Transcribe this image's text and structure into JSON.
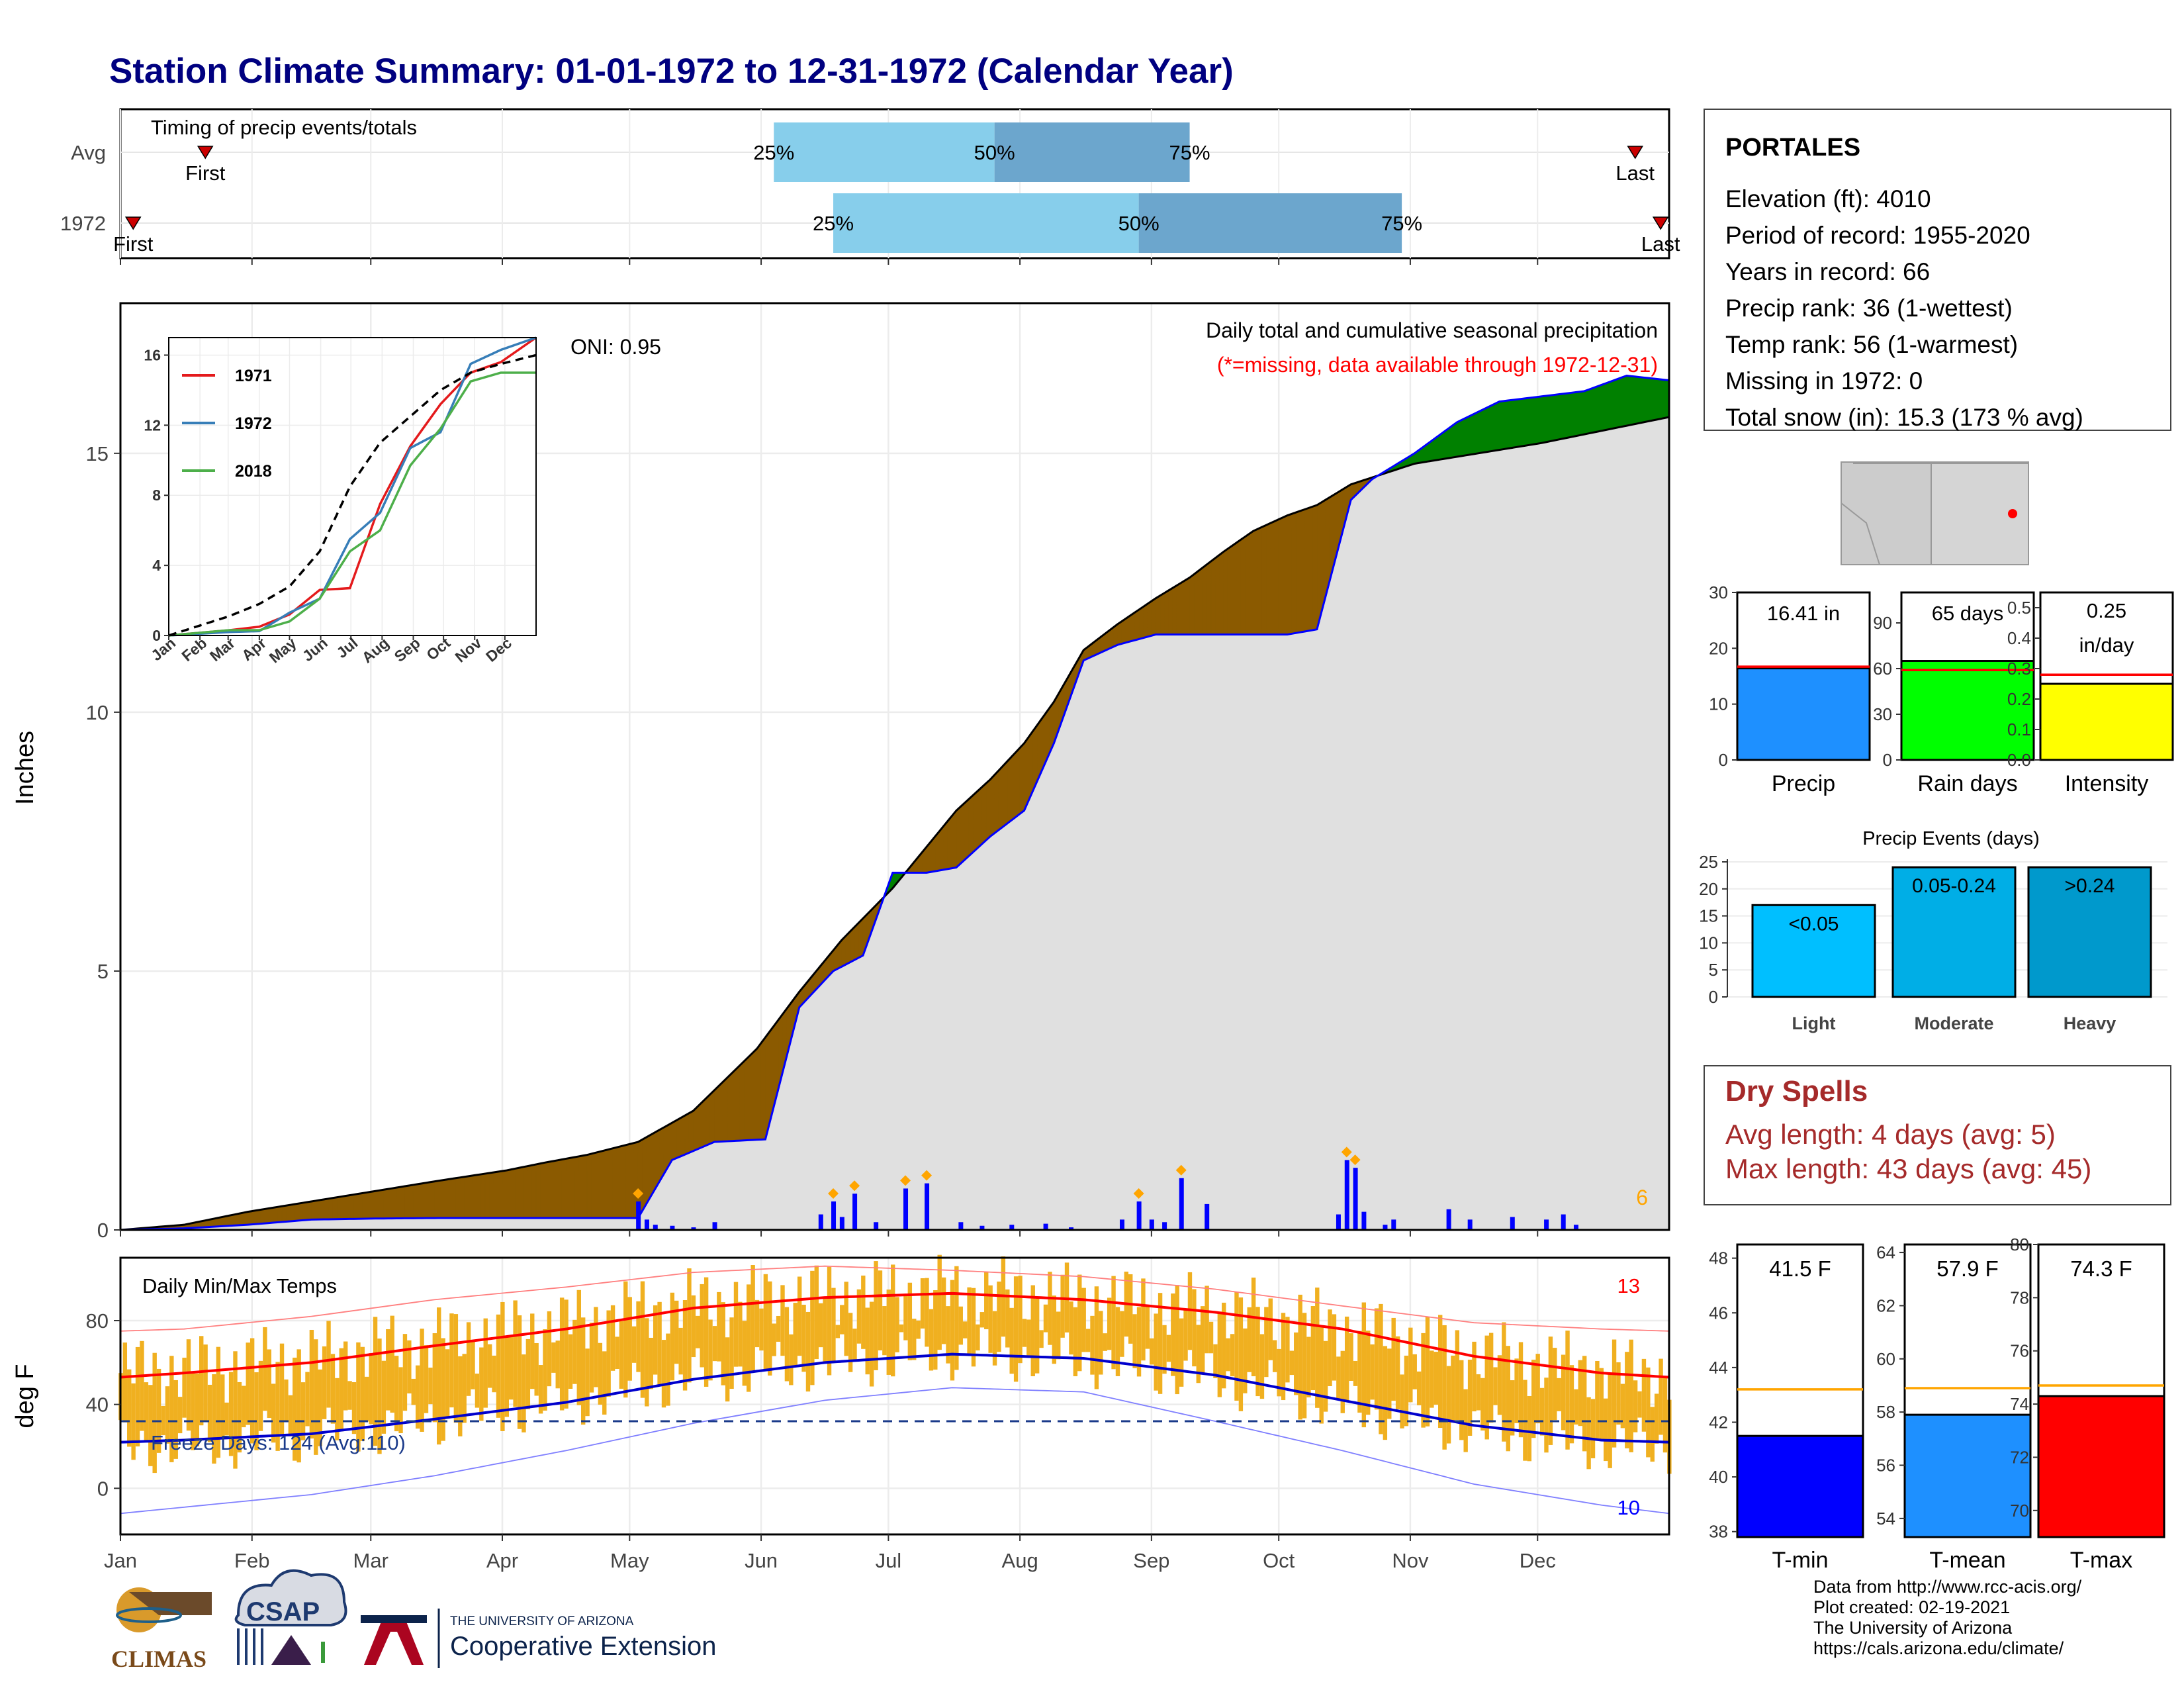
{
  "title": "Station Climate Summary: 01-01-1972 to 12-31-1972 (Calendar Year)",
  "months": [
    "Jan",
    "Feb",
    "Mar",
    "Apr",
    "May",
    "Jun",
    "Jul",
    "Aug",
    "Sep",
    "Oct",
    "Nov",
    "Dec"
  ],
  "timing": {
    "label": "Timing of precip events/totals",
    "rows": [
      {
        "name": "Avg",
        "first_doy": 20,
        "q25_doy": 154,
        "q50_doy": 206,
        "q75_doy": 252,
        "last_doy": 357
      },
      {
        "name": "1972",
        "first_doy": 3,
        "q25_doy": 168,
        "q50_doy": 240,
        "q75_doy": 302,
        "last_doy": 363
      }
    ],
    "labels": {
      "first": "First",
      "last": "Last",
      "q25": "25%",
      "q50": "50%",
      "q75": "75%"
    }
  },
  "precip": {
    "ylabel": "Inches",
    "yticks": [
      0,
      5,
      10,
      15
    ],
    "title1": "Daily total and cumulative seasonal precipitation",
    "title2": "(*=missing, data available through 1972-12-31)",
    "oni": "ONI: 0.95",
    "corner_count": "6"
  },
  "inset": {
    "yticks": [
      "0",
      "4",
      "8",
      "12",
      "16"
    ],
    "legend": [
      "1971",
      "1972",
      "2018"
    ],
    "colors": [
      "#e41a1c",
      "#377eb8",
      "#4daf4a"
    ]
  },
  "temps": {
    "ylabel": "deg F",
    "title": "Daily Min/Max Temps",
    "yticks": [
      "0",
      "40",
      "80"
    ],
    "freeze": "Freeze Days: 124 (Avg:110)",
    "count_hot": "13",
    "count_cold": "10"
  },
  "station": {
    "name": "PORTALES",
    "lines": [
      "Elevation (ft): 4010",
      "Period of record: 1955-2020",
      "Years in record: 66",
      "Precip rank: 36 (1-wettest)",
      "Temp rank: 56 (1-warmest)",
      "Missing in 1972: 0",
      "Total snow (in): 15.3 (173 % avg)"
    ]
  },
  "summary_bars": [
    {
      "label": "Precip",
      "value_text": "16.41 in",
      "value": 16.41,
      "avg": 16.7,
      "ymax": 30,
      "ticks": [
        "0",
        "10",
        "20",
        "30"
      ],
      "tick_vals": [
        0,
        10,
        20,
        30
      ],
      "color": "#1e90ff"
    },
    {
      "label": "Rain days",
      "value_text": "65 days",
      "value": 65,
      "avg": 59,
      "ymax": 110,
      "ticks": [
        "0",
        "30",
        "60",
        "90"
      ],
      "tick_vals": [
        0,
        30,
        60,
        90
      ],
      "color": "#00ff00"
    },
    {
      "label": "Intensity",
      "value_text": "0.25 in/day",
      "value": 0.25,
      "avg": 0.28,
      "ymax": 0.55,
      "ticks": [
        "0.0",
        "0.1",
        "0.2",
        "0.3",
        "0.4",
        "0.5"
      ],
      "tick_vals": [
        0,
        0.1,
        0.2,
        0.3,
        0.4,
        0.5
      ],
      "color": "#ffff00"
    }
  ],
  "precip_events": {
    "title": "Precip Events (days)",
    "yticks": [
      "0",
      "5",
      "10",
      "15",
      "20",
      "25"
    ],
    "bars": [
      {
        "label": "Light",
        "text": "<0.05",
        "value": 17,
        "color": "#00bfff"
      },
      {
        "label": "Moderate",
        "text": "0.05-0.24",
        "value": 24,
        "color": "#00aee6"
      },
      {
        "label": "Heavy",
        "text": ">0.24",
        "value": 24,
        "color": "#0099cc"
      }
    ]
  },
  "dry_spells": {
    "title": "Dry Spells",
    "avg_length": "Avg length: 4 days (avg: 5)",
    "max_length": "Max length: 43 days (avg: 45)"
  },
  "temp_bars": [
    {
      "label": "T-min",
      "value_text": "41.5 F",
      "value": 41.5,
      "avg": 43.2,
      "ymin": 37.8,
      "ymax": 48.5,
      "ticks": [
        "38",
        "40",
        "42",
        "44",
        "46",
        "48"
      ],
      "tick_vals": [
        38,
        40,
        42,
        44,
        46,
        48
      ],
      "color": "#0000ff"
    },
    {
      "label": "T-mean",
      "value_text": "57.9 F",
      "value": 57.9,
      "avg": 58.9,
      "ymin": 53.3,
      "ymax": 64.3,
      "ticks": [
        "54",
        "56",
        "58",
        "60",
        "62",
        "64"
      ],
      "tick_vals": [
        54,
        56,
        58,
        60,
        62,
        64
      ],
      "color": "#1e90ff"
    },
    {
      "label": "T-max",
      "value_text": "74.3 F",
      "value": 74.3,
      "avg": 74.7,
      "ymin": 69.0,
      "ymax": 80.0,
      "ticks": [
        "70",
        "72",
        "74",
        "76",
        "78",
        "80"
      ],
      "tick_vals": [
        70,
        72,
        74,
        76,
        78,
        80
      ],
      "color": "#ff0000"
    }
  ],
  "footer": [
    "Data from http://www.rcc-acis.org/",
    "Plot created: 02-19-2021",
    "The University of Arizona",
    "https://cals.arizona.edu/climate/"
  ],
  "logos": {
    "climas": "CLIMAS",
    "csap": "CSAP",
    "ua_small": "THE UNIVERSITY OF ARIZONA",
    "ua_big": "Cooperative Extension"
  },
  "chart_data": [
    {
      "type": "area",
      "title": "Daily total and cumulative seasonal precipitation",
      "ylabel": "Inches",
      "ylim": [
        0,
        17.9
      ],
      "series": [
        {
          "name": "1972",
          "x": [
            0,
            15,
            30,
            45,
            60,
            75,
            91,
            100,
            110,
            122,
            130,
            140,
            152,
            160,
            168,
            175,
            182,
            190,
            197,
            205,
            213,
            220,
            227,
            235,
            244,
            252,
            260,
            267,
            275,
            282,
            290,
            295,
            305,
            315,
            325,
            335,
            345,
            355,
            365
          ],
          "y": [
            0,
            0.03,
            0.1,
            0.2,
            0.22,
            0.23,
            0.23,
            0.23,
            0.23,
            0.23,
            1.35,
            1.7,
            1.75,
            4.3,
            5.0,
            5.3,
            6.9,
            6.9,
            7.0,
            7.6,
            8.1,
            9.4,
            11.0,
            11.3,
            11.5,
            11.5,
            11.5,
            11.5,
            11.5,
            11.6,
            14.1,
            14.5,
            15.0,
            15.6,
            16.0,
            16.1,
            16.2,
            16.5,
            16.41
          ]
        },
        {
          "name": "Avg",
          "x": [
            0,
            15,
            30,
            45,
            60,
            75,
            91,
            100,
            110,
            122,
            135,
            150,
            160,
            170,
            182,
            190,
            197,
            205,
            213,
            220,
            227,
            235,
            244,
            252,
            260,
            267,
            275,
            282,
            290,
            305,
            320,
            335,
            350,
            365
          ],
          "y": [
            0,
            0.1,
            0.35,
            0.55,
            0.75,
            0.95,
            1.15,
            1.3,
            1.45,
            1.7,
            2.3,
            3.5,
            4.6,
            5.6,
            6.6,
            7.4,
            8.1,
            8.7,
            9.4,
            10.2,
            11.2,
            11.7,
            12.2,
            12.6,
            13.1,
            13.5,
            13.8,
            14.0,
            14.4,
            14.8,
            15.0,
            15.2,
            15.45,
            15.7
          ]
        }
      ],
      "daily_bars": {
        "x": [
          122,
          124,
          126,
          130,
          135,
          140,
          165,
          168,
          170,
          173,
          178,
          185,
          190,
          198,
          203,
          210,
          218,
          224,
          236,
          240,
          243,
          246,
          250,
          256,
          287,
          289,
          291,
          293,
          298,
          300,
          313,
          318,
          328,
          336,
          340,
          343
        ],
        "y": [
          0.55,
          0.2,
          0.1,
          0.08,
          0.05,
          0.15,
          0.3,
          0.55,
          0.25,
          0.7,
          0.15,
          0.8,
          0.9,
          0.15,
          0.08,
          0.1,
          0.12,
          0.05,
          0.2,
          0.55,
          0.2,
          0.15,
          1.0,
          0.5,
          0.3,
          1.35,
          1.2,
          0.35,
          0.1,
          0.2,
          0.4,
          0.2,
          0.25,
          0.2,
          0.3,
          0.1
        ]
      },
      "inset": {
        "x": [
          "Jan",
          "Feb",
          "Mar",
          "Apr",
          "May",
          "Jun",
          "Jul",
          "Aug",
          "Sep",
          "Oct",
          "Nov",
          "Dec"
        ],
        "series": [
          {
            "name": "1971",
            "x": [
              0,
              60,
              90,
              120,
              150,
              180,
              210,
              240,
              270,
              300,
              330,
              365
            ],
            "y": [
              0,
              0.3,
              0.5,
              1.2,
              2.6,
              2.7,
              7.5,
              10.8,
              13.2,
              15.0,
              15.6,
              17.0
            ]
          },
          {
            "name": "1972",
            "x": [
              0,
              60,
              90,
              120,
              150,
              180,
              210,
              240,
              270,
              300,
              330,
              365
            ],
            "y": [
              0,
              0.2,
              0.25,
              1.3,
              2.1,
              5.5,
              7.0,
              10.7,
              11.6,
              15.5,
              16.3,
              17.0
            ]
          },
          {
            "name": "2018",
            "x": [
              0,
              60,
              90,
              120,
              150,
              180,
              210,
              240,
              270,
              300,
              330,
              365
            ],
            "y": [
              0,
              0.3,
              0.3,
              0.8,
              2.1,
              4.8,
              6.0,
              9.7,
              11.8,
              14.5,
              15.0,
              15.0
            ]
          },
          {
            "name": "avg",
            "x": [
              0,
              60,
              90,
              120,
              150,
              180,
              210,
              240,
              270,
              300,
              330,
              365
            ],
            "y": [
              0,
              1.1,
              1.8,
              2.8,
              4.8,
              8.5,
              11.0,
              12.5,
              14.0,
              15.0,
              15.5,
              16.0
            ]
          }
        ]
      }
    },
    {
      "type": "bar",
      "title": "Daily Min/Max Temps",
      "ylabel": "deg F",
      "ylim": [
        -22,
        110
      ],
      "monthly_normals": {
        "x": [
          0,
          15,
          45,
          74,
          105,
          135,
          166,
          196,
          227,
          258,
          288,
          319,
          349,
          365
        ],
        "avg_max": [
          53,
          55,
          60,
          68,
          76,
          86,
          91,
          93,
          90,
          84,
          76,
          63,
          55,
          53
        ],
        "avg_min": [
          22,
          23,
          26,
          33,
          41,
          52,
          60,
          64,
          62,
          54,
          42,
          30,
          23,
          22
        ],
        "rec_max": [
          75,
          76,
          82,
          90,
          96,
          103,
          106,
          104,
          101,
          95,
          87,
          79,
          76,
          75
        ],
        "rec_min": [
          -12,
          -9,
          -3,
          6,
          18,
          31,
          42,
          48,
          46,
          32,
          18,
          2,
          -8,
          -12
        ]
      },
      "daily_range": {
        "x": [
          0,
          15,
          45,
          74,
          105,
          135,
          166,
          196,
          227,
          258,
          288,
          319,
          349,
          365
        ],
        "hi": [
          55,
          57,
          62,
          70,
          78,
          88,
          92,
          94,
          91,
          85,
          77,
          64,
          56,
          55
        ],
        "lo": [
          20,
          21,
          25,
          33,
          42,
          53,
          60,
          65,
          62,
          53,
          40,
          28,
          21,
          20
        ]
      }
    }
  ]
}
